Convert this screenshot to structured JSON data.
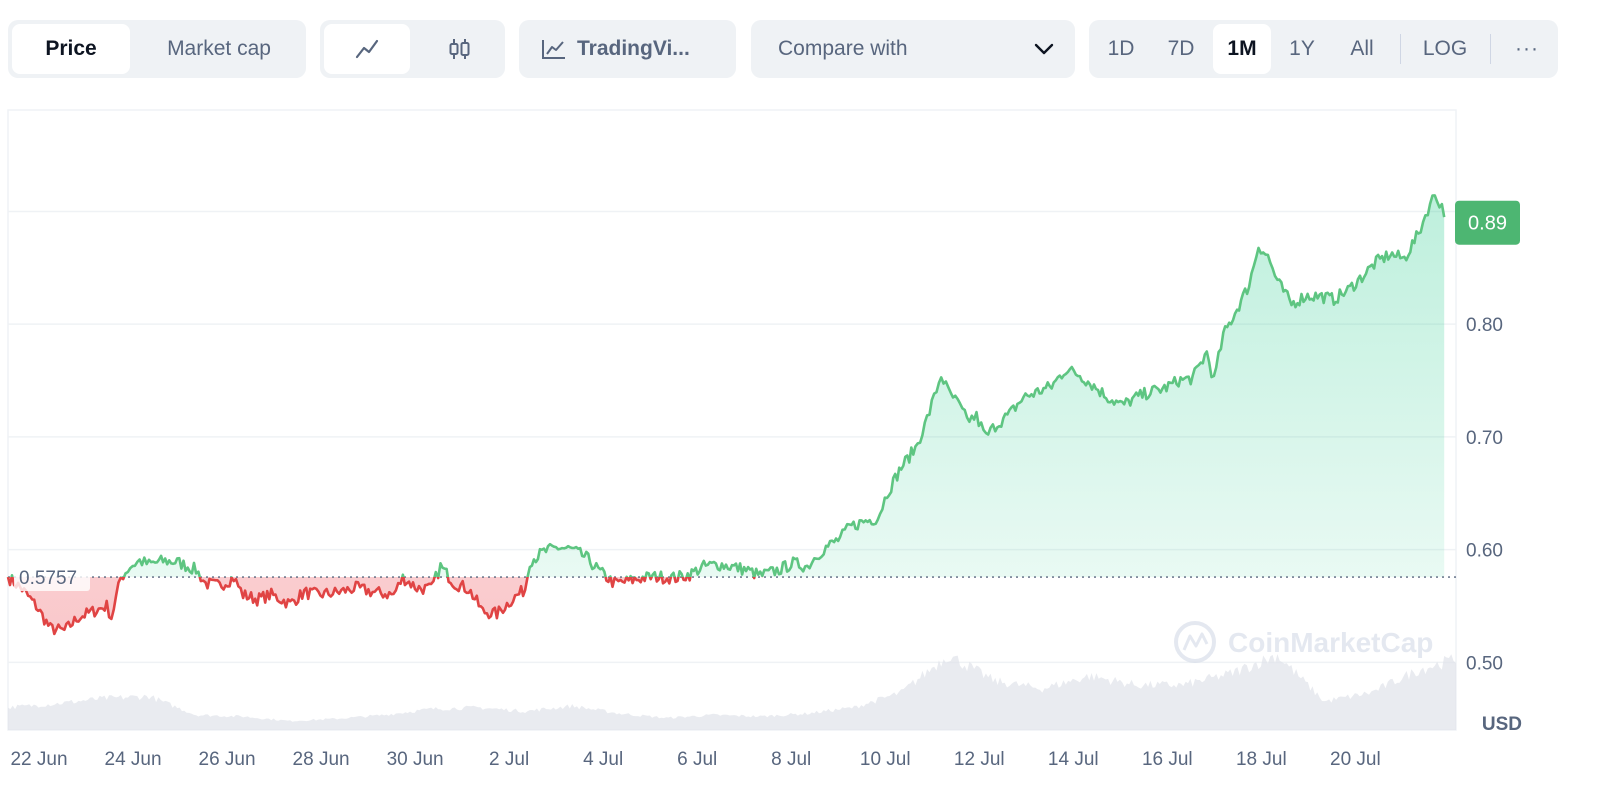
{
  "toolbar": {
    "type_tabs": [
      {
        "label": "Price",
        "active": true
      },
      {
        "label": "Market cap",
        "active": false
      }
    ],
    "style_tabs": [
      {
        "icon": "line-chart-icon",
        "active": true
      },
      {
        "icon": "candlestick-icon",
        "active": false
      }
    ],
    "tradingview_label": "TradingVi...",
    "compare_label": "Compare with",
    "ranges": [
      {
        "label": "1D",
        "active": false
      },
      {
        "label": "7D",
        "active": false
      },
      {
        "label": "1M",
        "active": true
      },
      {
        "label": "1Y",
        "active": false
      },
      {
        "label": "All",
        "active": false
      }
    ],
    "log_label": "LOG",
    "more_label": "···"
  },
  "chart_data": {
    "type": "area",
    "currency": "USD",
    "watermark": "CoinMarketCap",
    "baseline_value": 0.5757,
    "baseline_label": "0.5757",
    "current_value": 0.89,
    "current_label": "0.89",
    "ylim": [
      0.44,
      0.99
    ],
    "y_ticks": [
      0.5,
      0.6,
      0.7,
      0.8
    ],
    "y_tick_labels": [
      "0.50",
      "0.60",
      "0.70",
      "0.80"
    ],
    "x_range": [
      0,
      30.8
    ],
    "x_ticks": [
      0,
      2,
      4,
      6,
      8,
      10,
      12,
      14,
      16,
      18,
      20,
      22,
      24,
      26,
      28
    ],
    "x_tick_labels": [
      "22 Jun",
      "24 Jun",
      "26 Jun",
      "28 Jun",
      "30 Jun",
      "2 Jul",
      "4 Jul",
      "6 Jul",
      "8 Jul",
      "10 Jul",
      "12 Jul",
      "14 Jul",
      "16 Jul",
      "18 Jul",
      "20 Jul"
    ],
    "colors": {
      "up": "#16c784",
      "up_line": "#5ec581",
      "down": "#ea3943",
      "down_line": "#e04444",
      "label_bg": "#4db672",
      "grid": "#eff2f5",
      "volume": "#dfe3ea"
    },
    "series": [
      {
        "price": [
          [
            0.0,
            0.5757
          ],
          [
            0.3,
            0.565
          ],
          [
            0.6,
            0.55
          ],
          [
            0.9,
            0.53
          ],
          [
            1.2,
            0.528
          ],
          [
            1.5,
            0.54
          ],
          [
            1.8,
            0.545
          ],
          [
            2.1,
            0.55
          ],
          [
            2.2,
            0.54
          ],
          [
            2.4,
            0.575
          ],
          [
            2.6,
            0.585
          ],
          [
            2.8,
            0.59
          ],
          [
            3.0,
            0.587
          ],
          [
            3.3,
            0.59
          ],
          [
            3.6,
            0.589
          ],
          [
            4.0,
            0.582
          ],
          [
            4.2,
            0.57
          ],
          [
            4.5,
            0.568
          ],
          [
            4.8,
            0.575
          ],
          [
            5.0,
            0.56
          ],
          [
            5.3,
            0.556
          ],
          [
            5.6,
            0.56
          ],
          [
            6.0,
            0.552
          ],
          [
            6.3,
            0.562
          ],
          [
            6.6,
            0.56
          ],
          [
            7.0,
            0.562
          ],
          [
            7.4,
            0.566
          ],
          [
            7.8,
            0.562
          ],
          [
            8.2,
            0.56
          ],
          [
            8.4,
            0.575
          ],
          [
            8.7,
            0.566
          ],
          [
            9.0,
            0.565
          ],
          [
            9.2,
            0.585
          ],
          [
            9.5,
            0.57
          ],
          [
            9.8,
            0.565
          ],
          [
            10.1,
            0.545
          ],
          [
            10.4,
            0.543
          ],
          [
            10.7,
            0.555
          ],
          [
            11.0,
            0.565
          ],
          [
            11.1,
            0.59
          ],
          [
            11.4,
            0.598
          ],
          [
            11.7,
            0.602
          ],
          [
            12.0,
            0.6
          ],
          [
            12.3,
            0.593
          ],
          [
            12.6,
            0.58
          ],
          [
            12.9,
            0.57
          ],
          [
            13.2,
            0.572
          ],
          [
            13.5,
            0.575
          ],
          [
            13.8,
            0.576
          ],
          [
            14.2,
            0.575
          ],
          [
            14.5,
            0.578
          ],
          [
            14.8,
            0.585
          ],
          [
            15.1,
            0.587
          ],
          [
            15.4,
            0.585
          ],
          [
            15.7,
            0.582
          ],
          [
            16.0,
            0.577
          ],
          [
            16.4,
            0.582
          ],
          [
            16.7,
            0.588
          ],
          [
            17.0,
            0.585
          ],
          [
            17.2,
            0.595
          ],
          [
            17.4,
            0.602
          ],
          [
            17.7,
            0.61
          ],
          [
            17.9,
            0.62
          ],
          [
            18.2,
            0.625
          ],
          [
            18.5,
            0.628
          ],
          [
            18.7,
            0.65
          ],
          [
            19.0,
            0.673
          ],
          [
            19.3,
            0.69
          ],
          [
            19.5,
            0.71
          ],
          [
            19.7,
            0.735
          ],
          [
            19.85,
            0.755
          ],
          [
            20.0,
            0.74
          ],
          [
            20.2,
            0.73
          ],
          [
            20.4,
            0.715
          ],
          [
            20.6,
            0.718
          ],
          [
            20.8,
            0.7
          ],
          [
            21.0,
            0.71
          ],
          [
            21.3,
            0.72
          ],
          [
            21.6,
            0.735
          ],
          [
            21.9,
            0.74
          ],
          [
            22.2,
            0.745
          ],
          [
            22.5,
            0.76
          ],
          [
            22.8,
            0.755
          ],
          [
            23.1,
            0.745
          ],
          [
            23.4,
            0.735
          ],
          [
            23.7,
            0.728
          ],
          [
            24.0,
            0.735
          ],
          [
            24.3,
            0.74
          ],
          [
            24.6,
            0.743
          ],
          [
            24.9,
            0.75
          ],
          [
            25.2,
            0.752
          ],
          [
            25.5,
            0.775
          ],
          [
            25.65,
            0.75
          ],
          [
            25.85,
            0.79
          ],
          [
            26.1,
            0.81
          ],
          [
            26.4,
            0.835
          ],
          [
            26.6,
            0.87
          ],
          [
            26.8,
            0.86
          ],
          [
            27.0,
            0.838
          ],
          [
            27.3,
            0.818
          ],
          [
            27.6,
            0.825
          ],
          [
            27.9,
            0.825
          ],
          [
            28.2,
            0.822
          ],
          [
            28.5,
            0.83
          ],
          [
            28.8,
            0.842
          ],
          [
            29.1,
            0.855
          ],
          [
            29.4,
            0.862
          ],
          [
            29.7,
            0.858
          ],
          [
            30.0,
            0.88
          ],
          [
            30.2,
            0.902
          ],
          [
            30.35,
            0.915
          ],
          [
            30.5,
            0.905
          ],
          [
            30.55,
            0.895
          ]
        ],
        "volume": [
          [
            0,
            0.3
          ],
          [
            1,
            0.35
          ],
          [
            2,
            0.42
          ],
          [
            3,
            0.45
          ],
          [
            4,
            0.2
          ],
          [
            5,
            0.18
          ],
          [
            6,
            0.12
          ],
          [
            7,
            0.15
          ],
          [
            8,
            0.2
          ],
          [
            9,
            0.28
          ],
          [
            10,
            0.3
          ],
          [
            11,
            0.25
          ],
          [
            12,
            0.32
          ],
          [
            13,
            0.22
          ],
          [
            14,
            0.16
          ],
          [
            15,
            0.2
          ],
          [
            16,
            0.18
          ],
          [
            17,
            0.22
          ],
          [
            18,
            0.3
          ],
          [
            19,
            0.5
          ],
          [
            20,
            1.0
          ],
          [
            21,
            0.65
          ],
          [
            22,
            0.55
          ],
          [
            23,
            0.72
          ],
          [
            24,
            0.6
          ],
          [
            25,
            0.6
          ],
          [
            26,
            0.75
          ],
          [
            27,
            1.0
          ],
          [
            28,
            0.38
          ],
          [
            29,
            0.5
          ],
          [
            30,
            0.8
          ],
          [
            30.8,
            0.95
          ]
        ]
      }
    ]
  }
}
